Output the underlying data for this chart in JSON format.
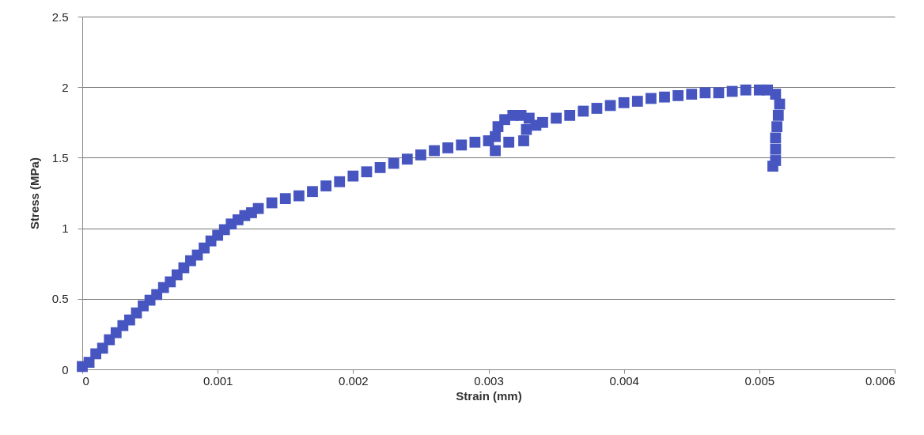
{
  "chart_data": {
    "type": "scatter",
    "xlabel": "Strain (mm)",
    "ylabel": "Stress (MPa)",
    "marker": "square",
    "grid": "y",
    "x": [
      0,
      5e-05,
      0.0001,
      0.00015,
      0.0002,
      0.00025,
      0.0003,
      0.00035,
      0.0004,
      0.00045,
      0.0005,
      0.00055,
      0.0006,
      0.00065,
      0.0007,
      0.00075,
      0.0008,
      0.00085,
      0.0009,
      0.00095,
      0.001,
      0.00105,
      0.0011,
      0.00115,
      0.0012,
      0.00125,
      0.0013,
      0.0014,
      0.0015,
      0.0016,
      0.0017,
      0.0018,
      0.0019,
      0.002,
      0.0021,
      0.0022,
      0.0023,
      0.0024,
      0.0025,
      0.0026,
      0.0027,
      0.0028,
      0.0029,
      0.003,
      0.00305,
      0.00305,
      0.00307,
      0.00312,
      0.00318,
      0.00324,
      0.0033,
      0.00328,
      0.00326,
      0.00315,
      0.00335,
      0.0034,
      0.0035,
      0.0036,
      0.0037,
      0.0038,
      0.0039,
      0.004,
      0.0041,
      0.0042,
      0.0043,
      0.0044,
      0.0045,
      0.0046,
      0.0047,
      0.0048,
      0.0049,
      0.005,
      0.00506,
      0.00512,
      0.00515,
      0.00514,
      0.00513,
      0.00512,
      0.00512,
      0.00512,
      0.0051
    ],
    "series": [
      {
        "color": "#4655c0",
        "values": [
          0.02,
          0.05,
          0.11,
          0.15,
          0.21,
          0.26,
          0.31,
          0.35,
          0.4,
          0.45,
          0.49,
          0.53,
          0.58,
          0.62,
          0.67,
          0.72,
          0.77,
          0.81,
          0.86,
          0.91,
          0.95,
          0.99,
          1.03,
          1.06,
          1.09,
          1.11,
          1.14,
          1.18,
          1.21,
          1.23,
          1.26,
          1.3,
          1.33,
          1.37,
          1.4,
          1.43,
          1.46,
          1.49,
          1.52,
          1.55,
          1.57,
          1.59,
          1.61,
          1.62,
          1.55,
          1.65,
          1.72,
          1.77,
          1.8,
          1.8,
          1.78,
          1.7,
          1.62,
          1.61,
          1.73,
          1.75,
          1.78,
          1.8,
          1.83,
          1.85,
          1.87,
          1.89,
          1.9,
          1.92,
          1.93,
          1.94,
          1.95,
          1.96,
          1.96,
          1.97,
          1.98,
          1.98,
          1.98,
          1.95,
          1.88,
          1.8,
          1.72,
          1.64,
          1.56,
          1.48,
          1.44
        ]
      }
    ],
    "xlim": [
      0,
      0.006
    ],
    "xticks": [
      0,
      0.001,
      0.002,
      0.003,
      0.004,
      0.005,
      0.006
    ],
    "ylim": [
      0,
      2.5
    ],
    "yticks": [
      0,
      0.5,
      1,
      1.5,
      2,
      2.5
    ]
  }
}
